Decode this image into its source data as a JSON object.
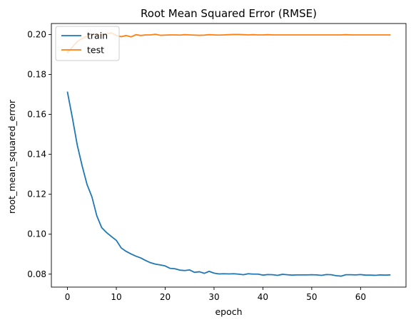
{
  "chart_data": {
    "type": "line",
    "title": "Root Mean Squared Error (RMSE)",
    "xlabel": "epoch",
    "ylabel": "root_mean_squared_error",
    "xlim": [
      -3.3,
      69.3
    ],
    "ylim": [
      0.0735,
      0.2055
    ],
    "x_ticks": [
      0,
      10,
      20,
      30,
      40,
      50,
      60
    ],
    "y_ticks": [
      0.08,
      0.1,
      0.12,
      0.14,
      0.16,
      0.18,
      0.2
    ],
    "y_tick_labels": [
      "0.08",
      "0.10",
      "0.12",
      "0.14",
      "0.16",
      "0.18",
      "0.20"
    ],
    "grid": false,
    "legend_position": "top-left",
    "series": [
      {
        "name": "train",
        "color": "#1f77b4",
        "values": [
          0.1711,
          0.1583,
          0.1446,
          0.1342,
          0.1249,
          0.1187,
          0.1092,
          0.1033,
          0.1008,
          0.0988,
          0.0969,
          0.0931,
          0.0914,
          0.0901,
          0.089,
          0.0881,
          0.0868,
          0.0857,
          0.085,
          0.0846,
          0.0841,
          0.0829,
          0.0827,
          0.082,
          0.0818,
          0.0821,
          0.0809,
          0.0812,
          0.0804,
          0.0814,
          0.0805,
          0.0801,
          0.0802,
          0.0801,
          0.0802,
          0.08,
          0.0797,
          0.0802,
          0.08,
          0.08,
          0.0795,
          0.0798,
          0.0797,
          0.0794,
          0.0799,
          0.0797,
          0.0795,
          0.0796,
          0.0796,
          0.0796,
          0.0797,
          0.0796,
          0.0794,
          0.0798,
          0.0797,
          0.0792,
          0.079,
          0.0797,
          0.0797,
          0.0796,
          0.0798,
          0.0795,
          0.0795,
          0.0794,
          0.0796,
          0.0795,
          0.0796
        ]
      },
      {
        "name": "test",
        "color": "#ff7f0e",
        "values": [
          0.191,
          0.1937,
          0.1965,
          0.198,
          0.1992,
          0.1998,
          0.2001,
          0.2,
          0.2003,
          0.2008,
          0.1995,
          0.1989,
          0.1995,
          0.1988,
          0.1999,
          0.1995,
          0.1998,
          0.1998,
          0.2001,
          0.1996,
          0.1997,
          0.1998,
          0.1998,
          0.1997,
          0.1999,
          0.1998,
          0.1997,
          0.1996,
          0.1997,
          0.1999,
          0.1998,
          0.1997,
          0.1998,
          0.1999,
          0.2,
          0.2,
          0.1999,
          0.1998,
          0.1999,
          0.1998,
          0.1998,
          0.1999,
          0.1998,
          0.1998,
          0.1998,
          0.1998,
          0.1998,
          0.1998,
          0.1998,
          0.1998,
          0.1998,
          0.1998,
          0.1998,
          0.1998,
          0.1998,
          0.1998,
          0.1998,
          0.1999,
          0.1998,
          0.1998,
          0.1998,
          0.1998,
          0.1998,
          0.1998,
          0.1998,
          0.1998,
          0.1998
        ]
      }
    ]
  }
}
